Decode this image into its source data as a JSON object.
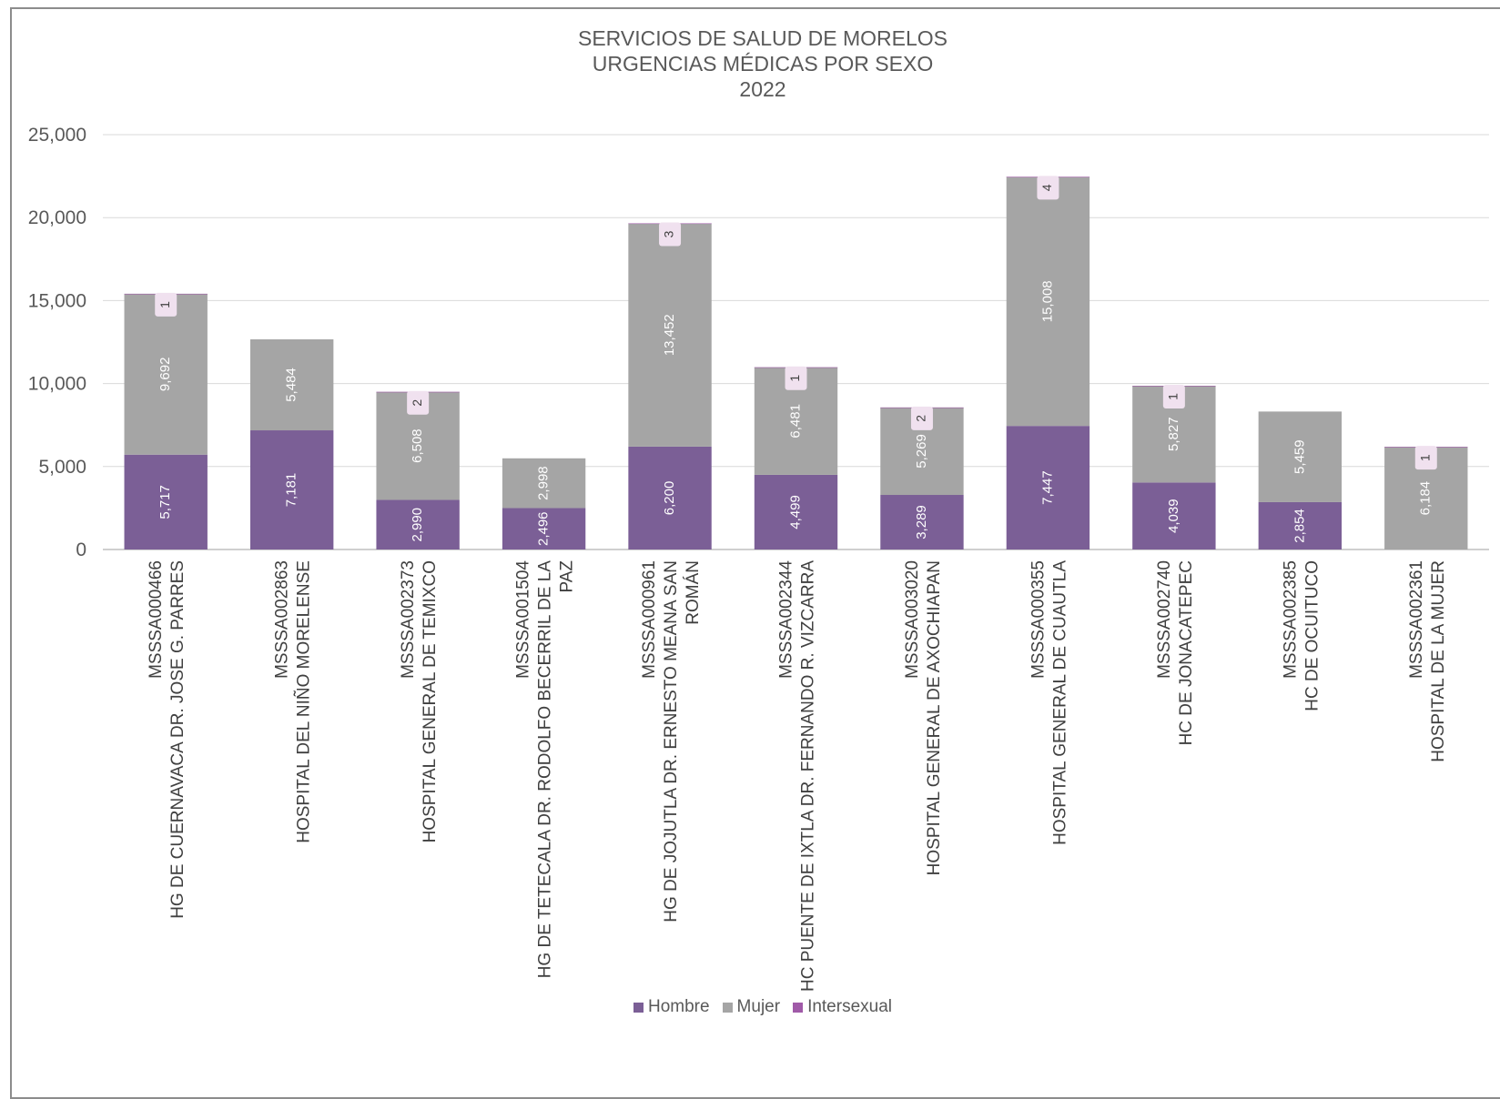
{
  "chart_data": {
    "type": "bar",
    "stacked": true,
    "title": [
      "SERVICIOS DE SALUD DE MORELOS",
      "URGENCIAS MÉDICAS POR SEXO",
      "2022"
    ],
    "ylim": [
      0,
      25000
    ],
    "yticks": [
      "0",
      "5,000",
      "10,000",
      "15,000",
      "20,000",
      "25,000"
    ],
    "ytick_values": [
      0,
      5000,
      10000,
      15000,
      20000,
      25000
    ],
    "grid": true,
    "legend_position": "bottom",
    "categories": [
      [
        "MSSSA000466",
        "HG DE CUERNAVACA DR. JOSE G. PARRES"
      ],
      [
        "MSSSA002863",
        "HOSPITAL DEL NIÑO MORELENSE"
      ],
      [
        "MSSSA002373",
        "HOSPITAL GENERAL DE TEMIXCO"
      ],
      [
        "MSSSA001504",
        "HG DE TETECALA DR. RODOLFO BECERRIL DE LA",
        "PAZ"
      ],
      [
        "MSSSA000961",
        "HG DE JOJUTLA DR. ERNESTO MEANA SAN",
        "ROMÁN"
      ],
      [
        "MSSSA002344",
        "HC PUENTE DE IXTLA DR. FERNANDO R. VIZCARRA"
      ],
      [
        "MSSSA003020",
        "HOSPITAL GENERAL DE AXOCHIAPAN"
      ],
      [
        "MSSSA000355",
        "HOSPITAL GENERAL DE CUAUTLA"
      ],
      [
        "MSSSA002740",
        "HC DE JONACATEPEC"
      ],
      [
        "MSSSA002385",
        "HC DE OCUITUCO"
      ],
      [
        "MSSSA002361",
        "HOSPITAL DE LA MUJER"
      ]
    ],
    "series": [
      {
        "name": "Hombre",
        "color": "#7b5f96",
        "values": [
          5717,
          7181,
          2990,
          2496,
          6200,
          4499,
          3289,
          7447,
          4039,
          2854,
          0
        ],
        "labels": [
          "5,717",
          "7,181",
          "2,990",
          "2,496",
          "6,200",
          "4,499",
          "3,289",
          "7,447",
          "4,039",
          "2,854",
          ""
        ]
      },
      {
        "name": "Mujer",
        "color": "#a5a5a5",
        "values": [
          9692,
          5484,
          6508,
          2998,
          13452,
          6481,
          5269,
          15008,
          5827,
          5459,
          6184
        ],
        "labels": [
          "9,692",
          "5,484",
          "6,508",
          "2,998",
          "13,452",
          "6,481",
          "5,269",
          "15,008",
          "5,827",
          "5,459",
          "6,184"
        ]
      },
      {
        "name": "Intersexual",
        "color": "#a05aa8",
        "values": [
          1,
          0,
          2,
          0,
          3,
          1,
          2,
          4,
          1,
          0,
          1
        ],
        "labels": [
          "1",
          "",
          "2",
          "",
          "3",
          "1",
          "2",
          "4",
          "1",
          "",
          "1"
        ]
      }
    ]
  }
}
